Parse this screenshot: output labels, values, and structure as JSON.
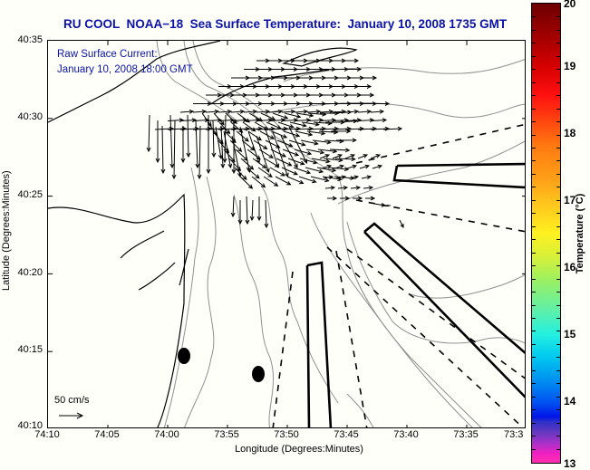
{
  "title": "RU COOL  NOAA−18  Sea Surface Temperature:  January 10, 2008 1735 GMT",
  "overlay": {
    "line1": "Raw Surface Current:",
    "line2": "January 10, 2008 18:00 GMT"
  },
  "scale_arrow": {
    "label": "50 cm/s"
  },
  "axes": {
    "ylabel": "Latitude (Degrees:Minutes)",
    "xlabel": "Longitude (Degrees:Minutes)",
    "yticks": [
      "40:35",
      "40:30",
      "40:25",
      "40:20",
      "40:15",
      "40:10"
    ],
    "xticks": [
      "74:10",
      "74:05",
      "74:00",
      "73:55",
      "73:50",
      "73:45",
      "73:40",
      "73:35",
      "73:3"
    ]
  },
  "colorbar": {
    "title": "Temperature (°C)",
    "ticks": [
      "20",
      "19",
      "18",
      "17",
      "16",
      "15",
      "14",
      "13"
    ],
    "range": [
      13,
      20
    ]
  },
  "colors": {
    "title": "#0a12a8",
    "land_line": "#000000",
    "bathymetry": "#909090",
    "background": "#fffffa"
  },
  "features": {
    "dump_sites": 2,
    "shipping_lanes": 3
  }
}
